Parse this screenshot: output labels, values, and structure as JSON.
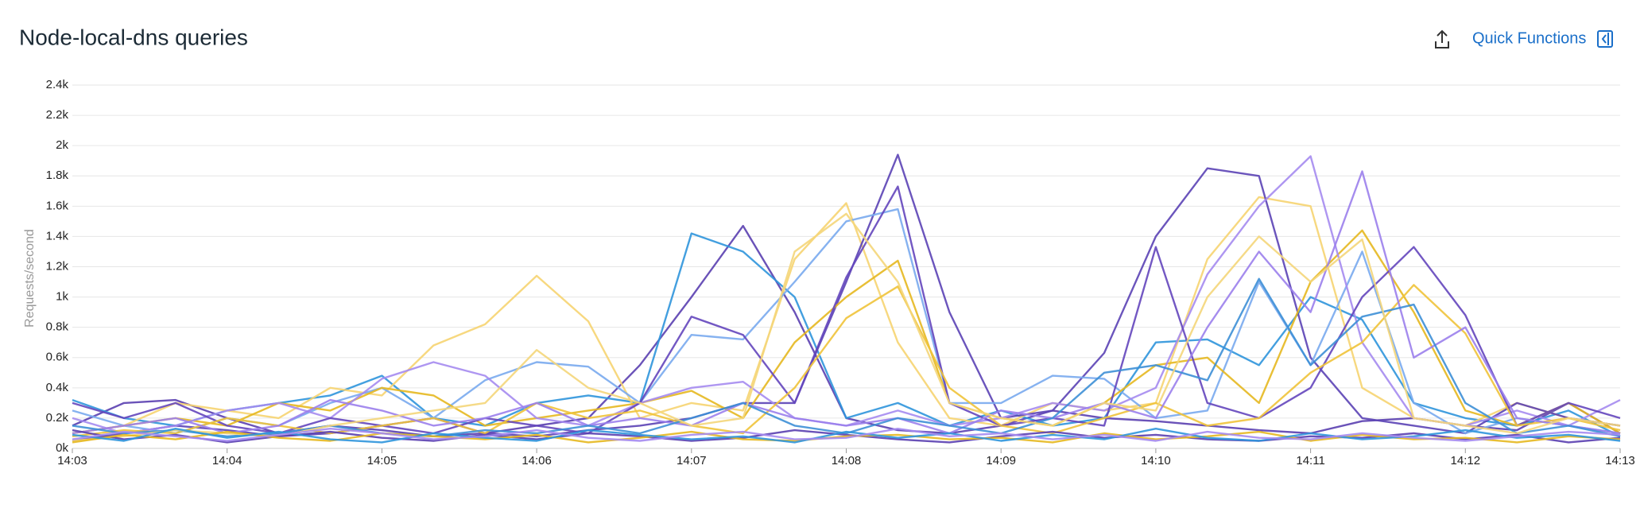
{
  "chart_data": {
    "type": "line",
    "title": "Node-local-dns queries",
    "action": "Quick Functions",
    "y_label": "Requests/second",
    "categories": [
      "14:03",
      null,
      null,
      "14:04",
      null,
      null,
      "14:05",
      null,
      null,
      "14:06",
      null,
      null,
      "14:07",
      null,
      null,
      "14:08",
      null,
      null,
      "14:09",
      null,
      null,
      "14:10",
      null,
      null,
      "14:11",
      null,
      null,
      "14:12",
      null,
      null,
      "14:13"
    ],
    "ylim": [
      0,
      2400
    ],
    "yticks": [
      {
        "value": 0,
        "label": "0k"
      },
      {
        "value": 200,
        "label": "0.2k"
      },
      {
        "value": 400,
        "label": "0.4k"
      },
      {
        "value": 600,
        "label": "0.6k"
      },
      {
        "value": 800,
        "label": "0.8k"
      },
      {
        "value": 1000,
        "label": "1k"
      },
      {
        "value": 1200,
        "label": "1.2k"
      },
      {
        "value": 1400,
        "label": "1.4k"
      },
      {
        "value": 1600,
        "label": "1.6k"
      },
      {
        "value": 1800,
        "label": "1.8k"
      },
      {
        "value": 2000,
        "label": "2k"
      },
      {
        "value": 2200,
        "label": "2.2k"
      },
      {
        "value": 2400,
        "label": "2.4k"
      }
    ],
    "grid": true,
    "series": [
      {
        "color": "#5a3fb0",
        "values": [
          150,
          300,
          320,
          200,
          100,
          150,
          120,
          80,
          100,
          150,
          200,
          550,
          1000,
          1470,
          900,
          200,
          120,
          100,
          150,
          250,
          200,
          180,
          150,
          120,
          100,
          180,
          200,
          150,
          120,
          300,
          100
        ]
      },
      {
        "color": "#2f95dc",
        "values": [
          320,
          200,
          150,
          250,
          300,
          350,
          480,
          200,
          150,
          300,
          350,
          300,
          1420,
          1300,
          1000,
          200,
          300,
          150,
          250,
          150,
          200,
          700,
          720,
          550,
          1000,
          850,
          300,
          200,
          150,
          250,
          80
        ]
      },
      {
        "color": "#f6d471",
        "values": [
          100,
          150,
          300,
          250,
          200,
          400,
          350,
          680,
          820,
          1140,
          840,
          200,
          300,
          250,
          1250,
          1620,
          700,
          200,
          150,
          300,
          250,
          300,
          1250,
          1660,
          1600,
          400,
          200,
          150,
          300,
          200,
          150
        ]
      },
      {
        "color": "#5b42b5",
        "values": [
          50,
          100,
          150,
          120,
          80,
          100,
          150,
          200,
          100,
          80,
          120,
          150,
          200,
          300,
          300,
          1100,
          1940,
          900,
          200,
          250,
          630,
          1400,
          1850,
          1800,
          600,
          200,
          150,
          100,
          300,
          200,
          150
        ]
      },
      {
        "color": "#79aaee",
        "values": [
          250,
          150,
          100,
          200,
          150,
          300,
          400,
          200,
          450,
          570,
          540,
          300,
          750,
          720,
          1100,
          1500,
          1580,
          300,
          300,
          480,
          460,
          200,
          250,
          1100,
          550,
          1300,
          300,
          100,
          200,
          150,
          100
        ]
      },
      {
        "color": "#e6b820",
        "values": [
          100,
          150,
          200,
          150,
          300,
          250,
          400,
          350,
          150,
          200,
          250,
          300,
          380,
          200,
          700,
          1000,
          1240,
          300,
          200,
          150,
          300,
          550,
          600,
          300,
          1100,
          1440,
          900,
          250,
          150,
          300,
          100
        ]
      },
      {
        "color": "#a58bf0",
        "values": [
          200,
          100,
          150,
          250,
          300,
          200,
          460,
          570,
          480,
          200,
          150,
          300,
          400,
          440,
          200,
          150,
          250,
          150,
          200,
          300,
          250,
          400,
          1150,
          1600,
          1930,
          700,
          200,
          150,
          250,
          150,
          320
        ]
      },
      {
        "color": "#6446bd",
        "values": [
          300,
          200,
          300,
          150,
          100,
          200,
          150,
          100,
          200,
          150,
          100,
          300,
          870,
          750,
          300,
          1130,
          1730,
          300,
          150,
          200,
          150,
          1330,
          300,
          200,
          400,
          1000,
          1330,
          880,
          150,
          300,
          200
        ]
      },
      {
        "color": "#f0c33a",
        "values": [
          80,
          120,
          100,
          200,
          150,
          100,
          150,
          200,
          100,
          300,
          200,
          250,
          150,
          100,
          400,
          860,
          1070,
          400,
          150,
          100,
          200,
          300,
          150,
          200,
          500,
          700,
          1080,
          760,
          150,
          200,
          120
        ]
      },
      {
        "color": "#9b7fec",
        "values": [
          100,
          150,
          200,
          100,
          150,
          320,
          250,
          150,
          200,
          300,
          150,
          200,
          150,
          300,
          200,
          150,
          200,
          100,
          250,
          200,
          300,
          200,
          800,
          1300,
          900,
          1830,
          600,
          800,
          200,
          150,
          100
        ]
      },
      {
        "color": "#3d8fd6",
        "values": [
          150,
          100,
          120,
          80,
          100,
          150,
          100,
          80,
          120,
          100,
          150,
          100,
          200,
          300,
          150,
          100,
          200,
          150,
          100,
          200,
          500,
          550,
          450,
          1120,
          550,
          870,
          950,
          300,
          100,
          150,
          80
        ]
      },
      {
        "color": "#f4d67a",
        "values": [
          50,
          80,
          120,
          100,
          80,
          150,
          200,
          250,
          300,
          650,
          400,
          300,
          150,
          200,
          1300,
          1550,
          1100,
          300,
          200,
          150,
          300,
          250,
          1000,
          1400,
          1100,
          1380,
          200,
          150,
          100,
          200,
          150
        ]
      },
      {
        "color": "#5a3fb0",
        "values": [
          120,
          60,
          90,
          40,
          80,
          110,
          70,
          50,
          90,
          60,
          100,
          80,
          50,
          70,
          120,
          90,
          60,
          40,
          80,
          110,
          70,
          90,
          60,
          50,
          80,
          70,
          100,
          60,
          90,
          40,
          70
        ]
      },
      {
        "color": "#e6b820",
        "values": [
          40,
          90,
          60,
          110,
          70,
          50,
          100,
          80,
          60,
          90,
          40,
          70,
          110,
          60,
          50,
          80,
          90,
          60,
          70,
          40,
          100,
          60,
          80,
          110,
          50,
          90,
          60,
          70,
          40,
          80,
          60
        ]
      },
      {
        "color": "#2f95dc",
        "values": [
          90,
          50,
          130,
          70,
          110,
          60,
          40,
          100,
          70,
          50,
          120,
          90,
          60,
          80,
          40,
          110,
          70,
          100,
          50,
          90,
          60,
          130,
          70,
          50,
          100,
          60,
          80,
          120,
          70,
          90,
          50
        ]
      },
      {
        "color": "#a58bf0",
        "values": [
          60,
          110,
          80,
          50,
          90,
          130,
          100,
          60,
          80,
          120,
          70,
          50,
          90,
          110,
          60,
          70,
          130,
          80,
          100,
          60,
          90,
          50,
          110,
          70,
          60,
          100,
          70,
          50,
          80,
          110,
          90
        ]
      }
    ]
  }
}
